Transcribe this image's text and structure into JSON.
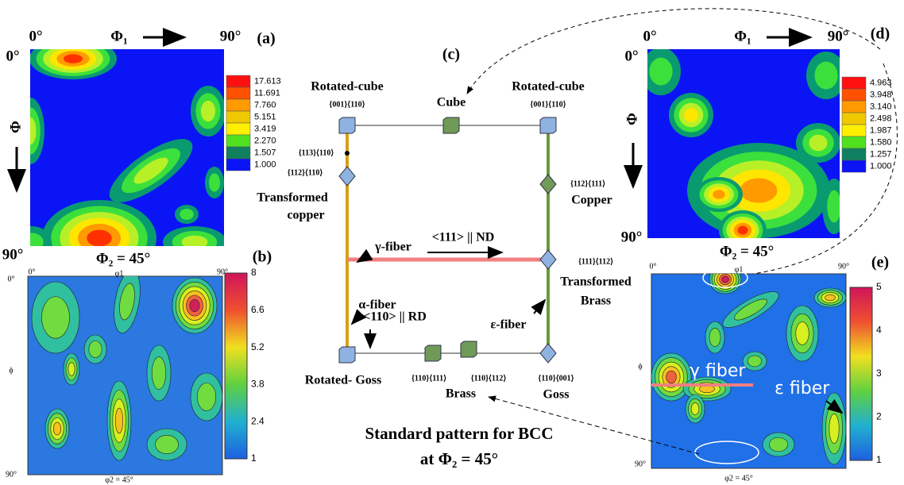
{
  "panel_a": {
    "label": "(a)",
    "x_start": "0°",
    "phi1": "Φ₁",
    "x_end": "90°",
    "y_start": "0°",
    "phi": "Φ",
    "y_end": "90°",
    "caption": "Φ₂ = 45°",
    "colorbar": [
      "17.613",
      "11.691",
      "7.760",
      "5.151",
      "3.419",
      "2.270",
      "1.507",
      "1.000"
    ]
  },
  "panel_b": {
    "label": "(b)",
    "x_start": "0°",
    "phi1": "φ1",
    "x_end": "90°",
    "y_start": "0°",
    "phi": "ϕ",
    "y_end": "90°",
    "caption": "φ2 = 45°",
    "colorbar": [
      "8",
      "6.6",
      "5.2",
      "3.8",
      "2.4",
      "1"
    ]
  },
  "panel_c": {
    "label": "(c)",
    "annotations": [
      "Rotated-cube",
      "{001}⟨110⟩",
      "Cube",
      "Rotated-cube",
      "{001}⟨110⟩",
      "{113}⟨110⟩",
      "{112}⟨110⟩",
      "Transformed",
      "copper",
      "{112}⟨111⟩",
      "Copper",
      "γ-fiber",
      "<111> || ND",
      "{111}⟨112⟩",
      "Transformed",
      "Brass",
      "α-fiber",
      "<110> || RD",
      "ε-fiber",
      "Rotated- Goss",
      "{110}⟨111⟩",
      "{110}⟨112⟩",
      "Brass",
      "{110}⟨001⟩",
      "Goss"
    ],
    "title": [
      "Standard pattern for BCC",
      "at Φ₂ = 45°"
    ]
  },
  "panel_d": {
    "label": "(d)",
    "x_start": "0°",
    "phi1": "Φ₁",
    "x_end": "90°",
    "y_start": "0°",
    "phi": "Φ",
    "y_end": "90°",
    "caption": "Φ₂ = 45°",
    "colorbar": [
      "4.963",
      "3.948",
      "3.140",
      "2.498",
      "1.987",
      "1.580",
      "1.257",
      "1.000"
    ]
  },
  "panel_e": {
    "label": "(e)",
    "x_start": "0°",
    "phi1": "φ1",
    "x_end": "90°",
    "phi": "ϕ",
    "y_end": "90°",
    "caption": "φ2 = 45°",
    "colorbar": [
      "5",
      "4",
      "3",
      "2",
      "1"
    ],
    "gamma_fiber": "γ fiber",
    "epsilon_fiber": "ε fiber"
  }
}
